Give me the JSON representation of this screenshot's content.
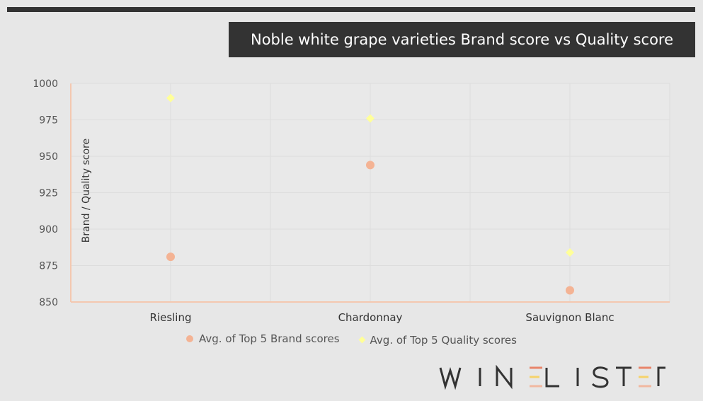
{
  "page": {
    "title": "Noble white grape varieties Brand score vs Quality score",
    "brand_logo_text": "WINE LISTER"
  },
  "chart_data": {
    "type": "scatter",
    "title": "Noble white grape varieties Brand score vs Quality score",
    "xlabel": "",
    "ylabel": "Brand / Quality score",
    "categories": [
      "Riesling",
      "Chardonnay",
      "Sauvignon Blanc"
    ],
    "ylim": [
      850,
      1000
    ],
    "yticks": [
      850,
      875,
      900,
      925,
      950,
      975,
      1000
    ],
    "grid": true,
    "legend_position": "bottom",
    "series": [
      {
        "name": "Avg. of Top 5 Brand scores",
        "marker": "circle",
        "color": "#f4b394",
        "values": [
          881,
          944,
          858
        ]
      },
      {
        "name": "Avg. of Top 5 Quality scores",
        "marker": "diamond",
        "color": "#ffff99",
        "values": [
          990,
          976,
          884
        ]
      }
    ]
  },
  "colors": {
    "background": "#e7e7e7",
    "title_bar": "#333333",
    "axis_line": "#f4c8b0",
    "gridline": "#dddddd"
  }
}
